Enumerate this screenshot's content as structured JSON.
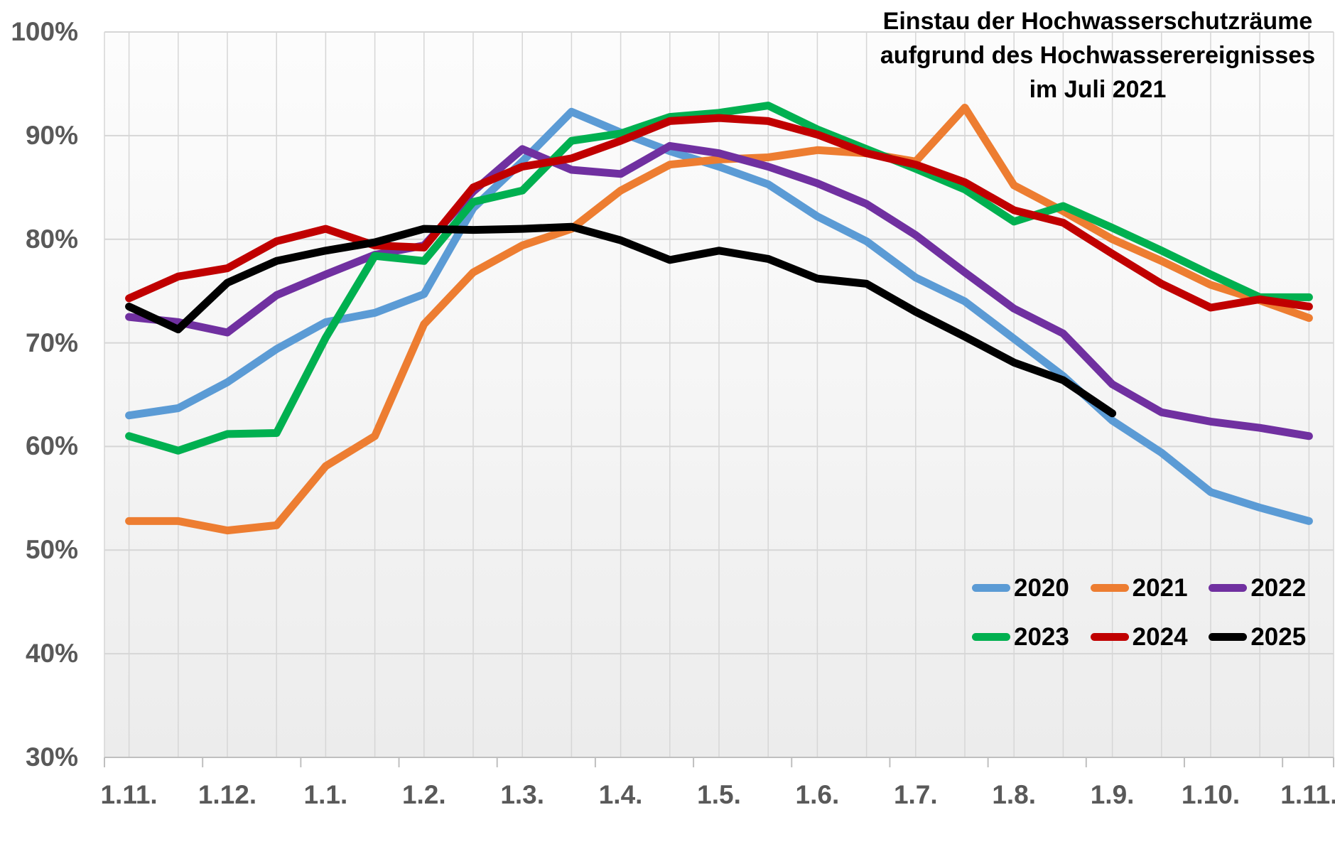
{
  "title": {
    "line1": "Einstau der Hochwasserschutzräume",
    "line2": "aufgrund des Hochwasserereignisses",
    "line3": "im Juli 2021"
  },
  "axis": {
    "text_color": "#595959",
    "gridline_color": "#d6d6d6",
    "axisline_color": "#bfbfbf"
  },
  "chart_data": {
    "type": "line",
    "title": "Einstau der Hochwasserschutzräume aufgrund des Hochwasserereignisses im Juli 2021",
    "ylabel": "",
    "xlabel": "",
    "ylim": [
      30,
      100
    ],
    "y_tick_labels": [
      "100%",
      "90%",
      "80%",
      "70%",
      "60%",
      "50%",
      "40%",
      "30%"
    ],
    "x_tick_labels": [
      "1.11.",
      "1.12.",
      "1.1.",
      "1.2.",
      "1.3.",
      "1.4.",
      "1.5.",
      "1.6.",
      "1.7.",
      "1.8.",
      "1.9.",
      "1.10.",
      "1.11."
    ],
    "x_resolution": "semi-monthly points, axis labels at month starts (hydrological year 1.11.–1.11.)",
    "grid": true,
    "legend_position": "inside bottom-right, 2 rows x 3 columns",
    "series": [
      {
        "name": "2020",
        "color": "#5B9BD5",
        "values": [
          63.0,
          63.7,
          66.2,
          69.4,
          72.0,
          72.9,
          74.7,
          83.0,
          87.5,
          92.3,
          90.3,
          88.5,
          87.0,
          85.3,
          82.2,
          79.8,
          76.3,
          74.0,
          70.4,
          66.8,
          62.5,
          59.4,
          55.6,
          54.1,
          52.8
        ]
      },
      {
        "name": "2021",
        "color": "#ED7D31",
        "values": [
          52.8,
          52.8,
          51.9,
          52.4,
          58.1,
          61.0,
          71.8,
          76.8,
          79.4,
          81.0,
          84.7,
          87.2,
          87.7,
          87.9,
          88.6,
          88.3,
          87.5,
          92.7,
          85.2,
          82.7,
          80.0,
          77.9,
          75.6,
          74.1,
          72.4
        ]
      },
      {
        "name": "2022",
        "color": "#7030A0",
        "values": [
          72.5,
          72.0,
          71.0,
          74.6,
          76.6,
          78.5,
          79.4,
          84.6,
          88.7,
          86.7,
          86.3,
          89.0,
          88.3,
          87.0,
          85.4,
          83.4,
          80.4,
          76.8,
          73.3,
          70.9,
          66.0,
          63.3,
          62.4,
          61.8,
          61.0
        ]
      },
      {
        "name": "2023",
        "color": "#00B050",
        "values": [
          61.0,
          59.6,
          61.2,
          61.3,
          70.5,
          78.4,
          77.9,
          83.6,
          84.7,
          89.5,
          90.2,
          91.8,
          92.2,
          92.9,
          90.6,
          88.7,
          86.8,
          84.8,
          81.7,
          83.2,
          81.1,
          78.9,
          76.6,
          74.4,
          74.4
        ]
      },
      {
        "name": "2024",
        "color": "#C00000",
        "values": [
          74.3,
          76.4,
          77.2,
          79.8,
          81.0,
          79.4,
          79.2,
          85.0,
          87.0,
          87.8,
          89.5,
          91.4,
          91.7,
          91.4,
          90.1,
          88.3,
          87.2,
          85.5,
          82.8,
          81.6,
          78.6,
          75.7,
          73.4,
          74.2,
          73.5
        ]
      },
      {
        "name": "2025",
        "color": "#000000",
        "values": [
          73.5,
          71.3,
          75.8,
          77.9,
          78.9,
          79.7,
          81.0,
          80.9,
          81.0,
          81.2,
          79.9,
          78.0,
          78.9,
          78.1,
          76.2,
          75.7,
          73.0,
          70.6,
          68.1,
          66.4,
          63.2,
          null,
          null,
          null,
          null
        ]
      }
    ]
  }
}
